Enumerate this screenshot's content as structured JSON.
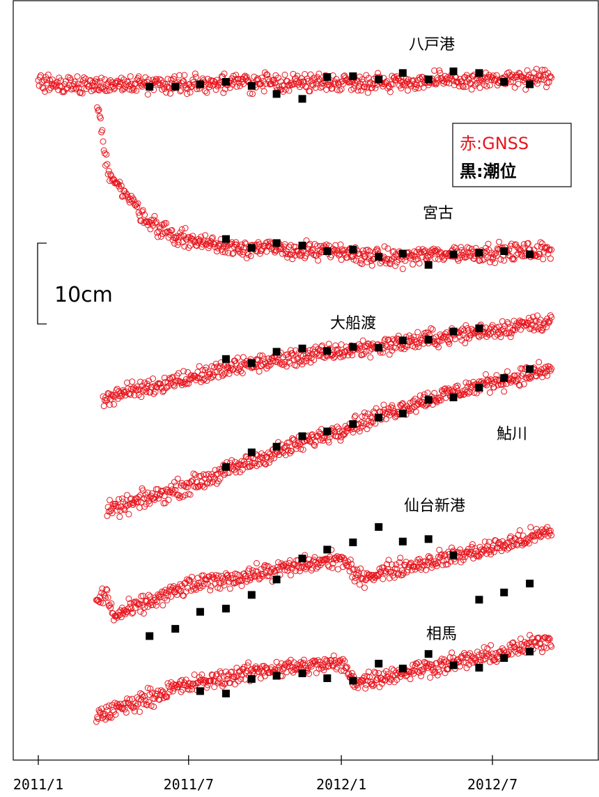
{
  "chart_data": {
    "type": "scatter",
    "x_ticks": [
      "2011/1",
      "2011/7",
      "2012/1",
      "2012/7"
    ],
    "legend": [
      {
        "key": "赤",
        "label": "GNSS",
        "color": "#e8141c"
      },
      {
        "key": "黒",
        "label": "潮位",
        "color": "#000000"
      }
    ],
    "legend_separator": ":",
    "scale_bar": {
      "label": "10cm",
      "length_cm": 10
    },
    "series": [
      {
        "name": "八戸港",
        "gnss": {
          "start": "2011-01-01",
          "end": "2012-09-10",
          "knots": [
            [
              "2011-01-01",
              0.0
            ],
            [
              "2011-04-01",
              0.0
            ],
            [
              "2011-10-01",
              0.2
            ],
            [
              "2012-04-01",
              0.3
            ],
            [
              "2012-09-10",
              0.7
            ]
          ]
        },
        "tide": [
          [
            "2011-05-15",
            -0.3
          ],
          [
            "2011-06-15",
            -0.3
          ],
          [
            "2011-07-15",
            0.0
          ],
          [
            "2011-08-15",
            0.3
          ],
          [
            "2011-09-15",
            -0.2
          ],
          [
            "2011-10-15",
            -1.2
          ],
          [
            "2011-11-15",
            -1.8
          ],
          [
            "2011-12-15",
            0.9
          ],
          [
            "2012-01-15",
            1.0
          ],
          [
            "2012-02-15",
            0.6
          ],
          [
            "2012-03-15",
            1.4
          ],
          [
            "2012-04-15",
            0.6
          ],
          [
            "2012-05-15",
            1.6
          ],
          [
            "2012-06-15",
            1.4
          ],
          [
            "2012-07-15",
            0.3
          ],
          [
            "2012-08-15",
            0.0
          ]
        ]
      },
      {
        "name": "宮古",
        "gnss": {
          "start": "2011-03-12",
          "end": "2012-09-10",
          "knots": [
            [
              "2011-03-12",
              18.6
            ],
            [
              "2011-03-25",
              10.0
            ],
            [
              "2011-04-15",
              6.8
            ],
            [
              "2011-05-15",
              3.3
            ],
            [
              "2011-06-15",
              1.5
            ],
            [
              "2011-08-01",
              0.5
            ],
            [
              "2011-10-01",
              0.0
            ],
            [
              "2012-01-01",
              -0.5
            ],
            [
              "2012-03-01",
              -1.2
            ],
            [
              "2012-05-01",
              -0.6
            ],
            [
              "2012-09-10",
              -0.3
            ]
          ]
        },
        "tide": [
          [
            "2011-08-15",
            1.2
          ],
          [
            "2011-09-15",
            0.1
          ],
          [
            "2011-10-15",
            0.7
          ],
          [
            "2011-11-15",
            0.4
          ],
          [
            "2011-12-15",
            -0.3
          ],
          [
            "2012-01-15",
            -0.1
          ],
          [
            "2012-02-15",
            -1.0
          ],
          [
            "2012-03-15",
            -0.6
          ],
          [
            "2012-04-15",
            -2.0
          ],
          [
            "2012-05-15",
            -0.7
          ],
          [
            "2012-06-15",
            -0.5
          ],
          [
            "2012-07-15",
            -0.3
          ],
          [
            "2012-08-15",
            -0.7
          ]
        ]
      },
      {
        "name": "大船渡",
        "gnss": {
          "start": "2011-03-20",
          "end": "2012-09-10",
          "knots": [
            [
              "2011-03-20",
              0.0
            ],
            [
              "2011-06-01",
              1.8
            ],
            [
              "2011-09-15",
              4.2
            ],
            [
              "2011-12-15",
              5.5
            ],
            [
              "2012-03-15",
              6.8
            ],
            [
              "2012-06-15",
              8.2
            ],
            [
              "2012-09-10",
              9.5
            ]
          ]
        },
        "tide": [
          [
            "2011-08-15",
            4.8
          ],
          [
            "2011-09-15",
            4.3
          ],
          [
            "2011-10-15",
            5.7
          ],
          [
            "2011-11-15",
            6.1
          ],
          [
            "2011-12-15",
            5.8
          ],
          [
            "2012-01-15",
            6.3
          ],
          [
            "2012-02-15",
            6.2
          ],
          [
            "2012-03-15",
            7.1
          ],
          [
            "2012-04-15",
            7.2
          ],
          [
            "2012-05-15",
            8.2
          ],
          [
            "2012-06-15",
            8.6
          ]
        ]
      },
      {
        "name": "鮎川",
        "gnss": {
          "start": "2011-03-25",
          "end": "2012-09-10",
          "knots": [
            [
              "2011-03-25",
              0.0
            ],
            [
              "2011-07-01",
              3.2
            ],
            [
              "2011-10-01",
              6.8
            ],
            [
              "2012-01-01",
              10.2
            ],
            [
              "2012-04-01",
              13.5
            ],
            [
              "2012-07-01",
              16.0
            ],
            [
              "2012-09-10",
              17.5
            ]
          ]
        },
        "tide": [
          [
            "2011-08-15",
            5.5
          ],
          [
            "2011-09-15",
            7.3
          ],
          [
            "2011-10-15",
            8.0
          ],
          [
            "2011-11-15",
            9.3
          ],
          [
            "2011-12-15",
            9.9
          ],
          [
            "2012-01-15",
            10.8
          ],
          [
            "2012-02-15",
            11.6
          ],
          [
            "2012-03-15",
            12.1
          ],
          [
            "2012-04-15",
            13.8
          ],
          [
            "2012-05-15",
            14.1
          ],
          [
            "2012-06-15",
            15.3
          ],
          [
            "2012-07-15",
            16.5
          ],
          [
            "2012-08-15",
            17.6
          ]
        ]
      },
      {
        "name": "仙台新港",
        "gnss": {
          "start": "2011-03-12",
          "end": "2012-09-10",
          "knots": [
            [
              "2011-03-12",
              0.0
            ],
            [
              "2011-03-25",
              0.8
            ],
            [
              "2011-04-01",
              -2.0
            ],
            [
              "2011-07-01",
              1.8
            ],
            [
              "2011-10-01",
              3.5
            ],
            [
              "2012-01-01",
              5.2
            ],
            [
              "2012-01-20",
              2.8
            ],
            [
              "2012-04-01",
              4.5
            ],
            [
              "2012-07-01",
              6.5
            ],
            [
              "2012-09-10",
              8.5
            ]
          ]
        },
        "tide": [
          [
            "2011-05-15",
            -4.4
          ],
          [
            "2011-06-15",
            -3.5
          ],
          [
            "2011-07-15",
            -1.4
          ],
          [
            "2011-08-15",
            -1.0
          ],
          [
            "2011-09-15",
            0.7
          ],
          [
            "2011-10-15",
            2.6
          ],
          [
            "2011-11-15",
            5.2
          ],
          [
            "2011-12-15",
            6.3
          ],
          [
            "2012-01-15",
            7.2
          ],
          [
            "2012-02-15",
            9.1
          ],
          [
            "2012-03-15",
            7.3
          ],
          [
            "2012-04-15",
            7.6
          ],
          [
            "2012-05-15",
            5.6
          ],
          [
            "2012-06-15",
            0.1
          ],
          [
            "2012-07-15",
            1.0
          ],
          [
            "2012-08-15",
            2.1
          ]
        ]
      },
      {
        "name": "相馬",
        "gnss": {
          "start": "2011-03-12",
          "end": "2012-09-10",
          "knots": [
            [
              "2011-03-12",
              0.0
            ],
            [
              "2011-06-15",
              3.5
            ],
            [
              "2011-10-01",
              5.8
            ],
            [
              "2012-01-01",
              6.5
            ],
            [
              "2012-01-20",
              4.2
            ],
            [
              "2012-04-01",
              5.8
            ],
            [
              "2012-07-01",
              7.5
            ],
            [
              "2012-09-10",
              9.5
            ]
          ]
        },
        "tide": [
          [
            "2011-07-15",
            3.1
          ],
          [
            "2011-08-15",
            2.8
          ],
          [
            "2011-09-15",
            4.6
          ],
          [
            "2011-10-15",
            5.0
          ],
          [
            "2011-11-15",
            5.3
          ],
          [
            "2011-12-15",
            4.7
          ],
          [
            "2012-01-15",
            4.4
          ],
          [
            "2012-02-15",
            6.5
          ],
          [
            "2012-03-15",
            5.9
          ],
          [
            "2012-04-15",
            7.7
          ],
          [
            "2012-05-15",
            6.3
          ],
          [
            "2012-06-15",
            6.0
          ],
          [
            "2012-07-15",
            7.2
          ],
          [
            "2012-08-15",
            8.0
          ]
        ]
      }
    ]
  }
}
